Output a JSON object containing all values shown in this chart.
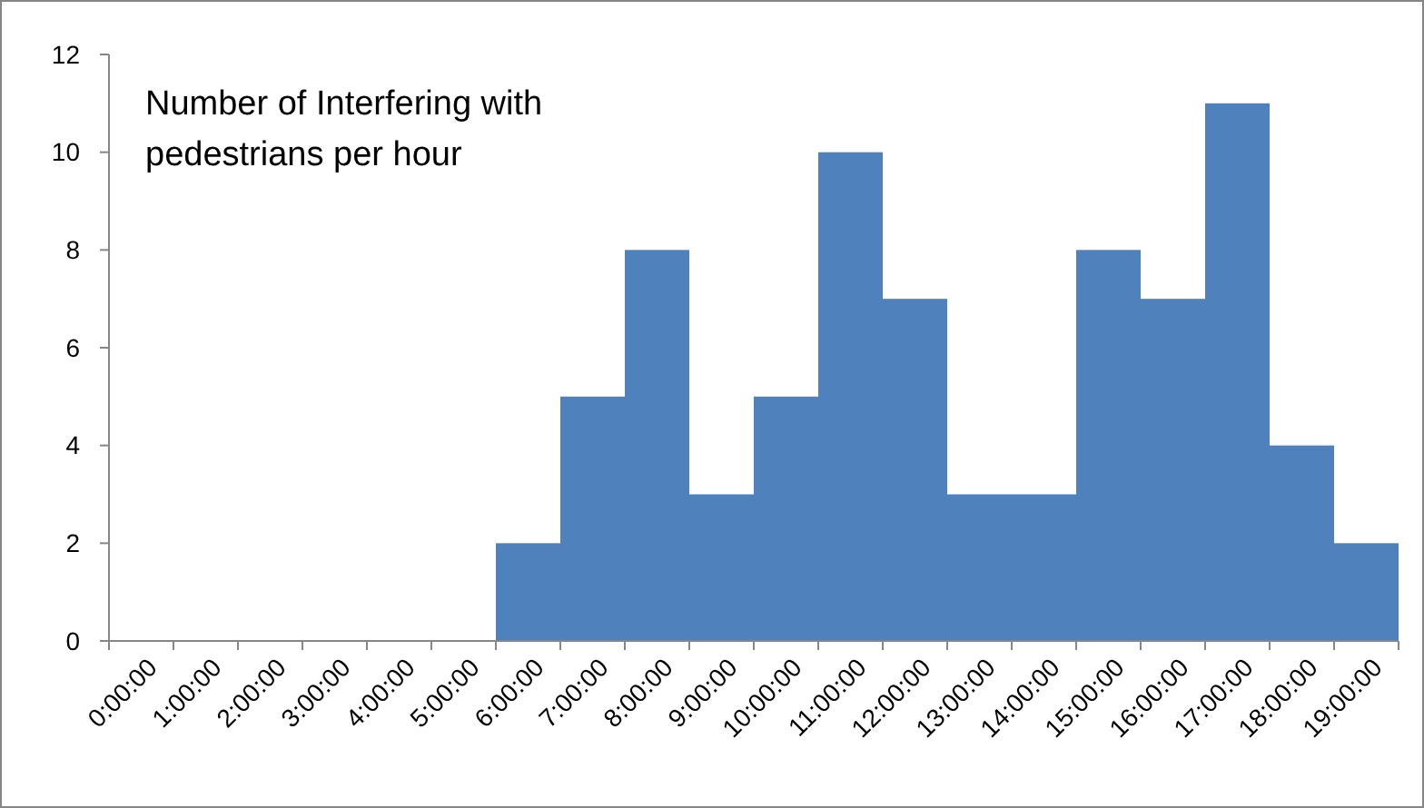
{
  "chart_data": {
    "type": "bar",
    "title": "Number of Interfering with pedestrians per hour",
    "categories": [
      "0:00:00",
      "1:00:00",
      "2:00:00",
      "3:00:00",
      "4:00:00",
      "5:00:00",
      "6:00:00",
      "7:00:00",
      "8:00:00",
      "9:00:00",
      "10:00:00",
      "11:00:00",
      "12:00:00",
      "13:00:00",
      "14:00:00",
      "15:00:00",
      "16:00:00",
      "17:00:00",
      "18:00:00",
      "19:00:00"
    ],
    "values": [
      0,
      0,
      0,
      0,
      0,
      0,
      2,
      5,
      8,
      3,
      5,
      10,
      7,
      3,
      3,
      8,
      7,
      11,
      4,
      2
    ],
    "color": "#4f81bd",
    "ylim": [
      0,
      12
    ],
    "yticks": [
      0,
      2,
      4,
      6,
      8,
      10,
      12
    ]
  }
}
